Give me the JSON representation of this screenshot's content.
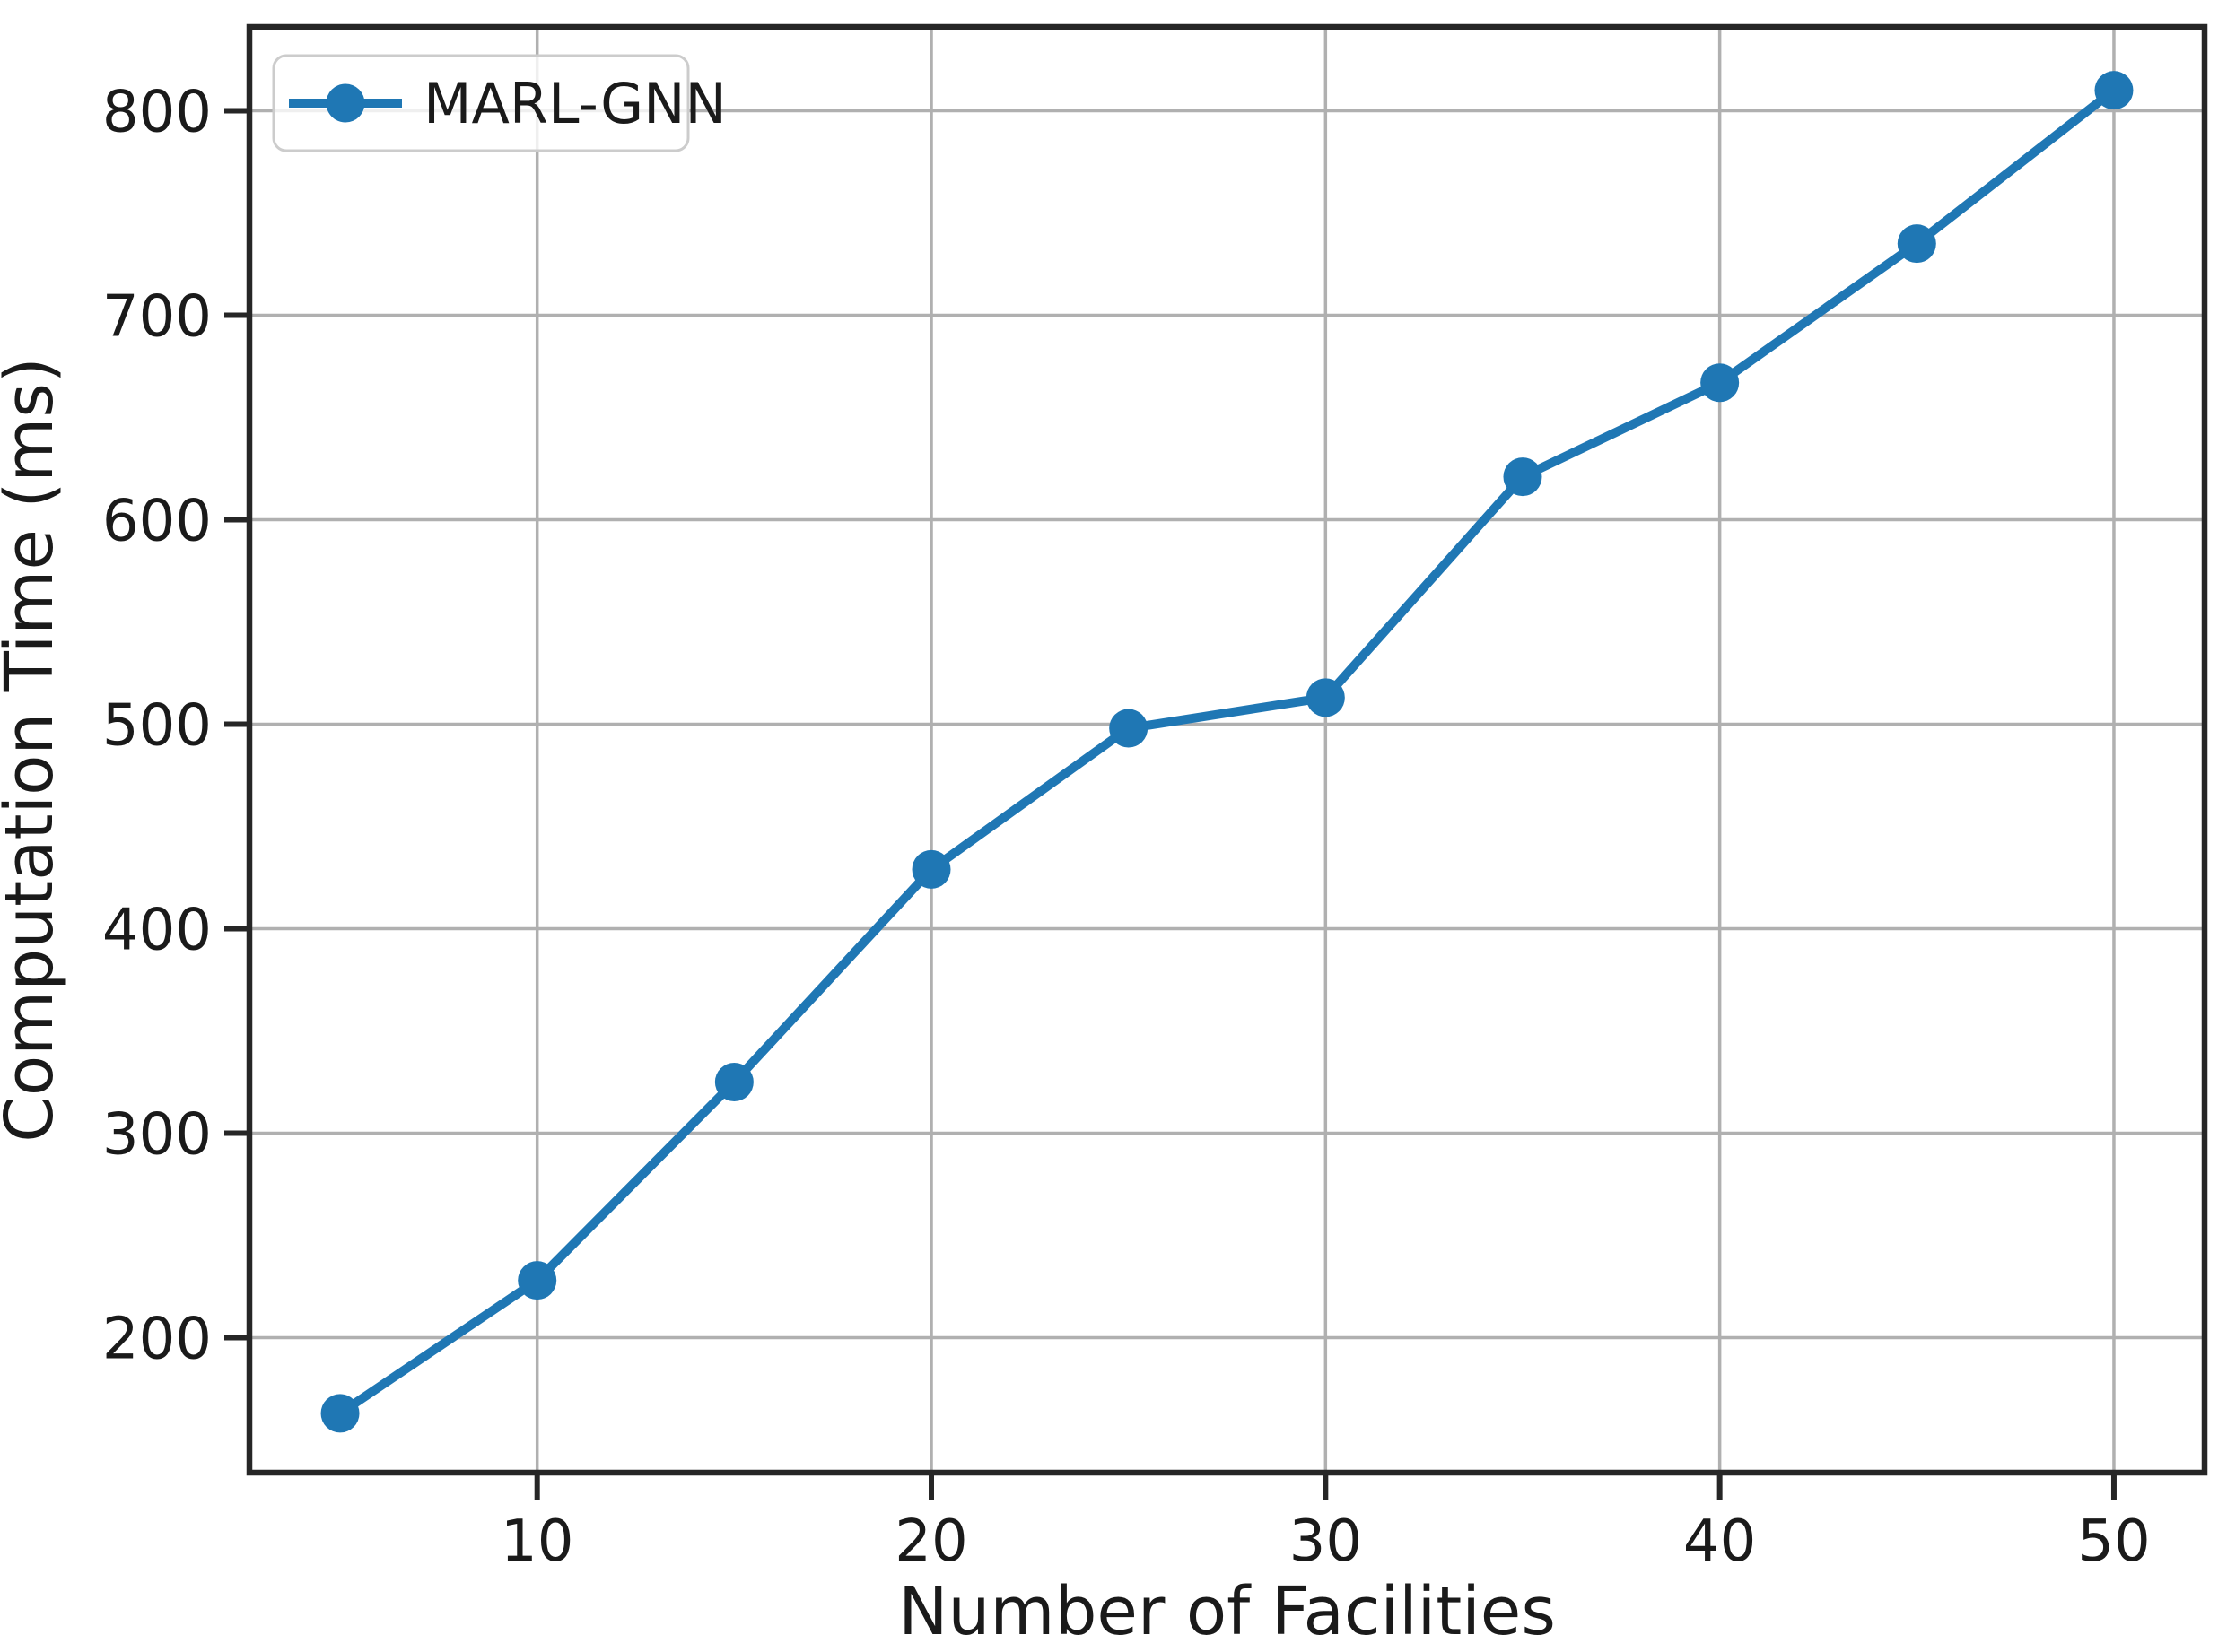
{
  "figure": {
    "background": "#ffffff"
  },
  "chart_data": {
    "type": "line",
    "title": "",
    "xlabel": "Number of Facilities",
    "ylabel": "Computation Time (ms)",
    "series": [
      {
        "name": "MARL-GNN",
        "color": "#1f77b4",
        "marker": "circle",
        "x": [
          5,
          10,
          15,
          20,
          25,
          30,
          35,
          40,
          45,
          50
        ],
        "y": [
          163,
          228,
          325,
          429,
          498,
          513,
          621,
          667,
          735,
          810
        ]
      }
    ],
    "x_ticks": [
      10,
      20,
      30,
      40,
      50
    ],
    "y_ticks": [
      200,
      300,
      400,
      500,
      600,
      700,
      800
    ],
    "xlim": [
      2.7,
      52.3
    ],
    "ylim": [
      134,
      841
    ],
    "grid": true,
    "grid_color": "#b0b0b0",
    "axis_color": "#262626",
    "text_color": "#1a1a1a",
    "legend": {
      "position": "upper-left",
      "entries": [
        "MARL-GNN"
      ]
    }
  }
}
